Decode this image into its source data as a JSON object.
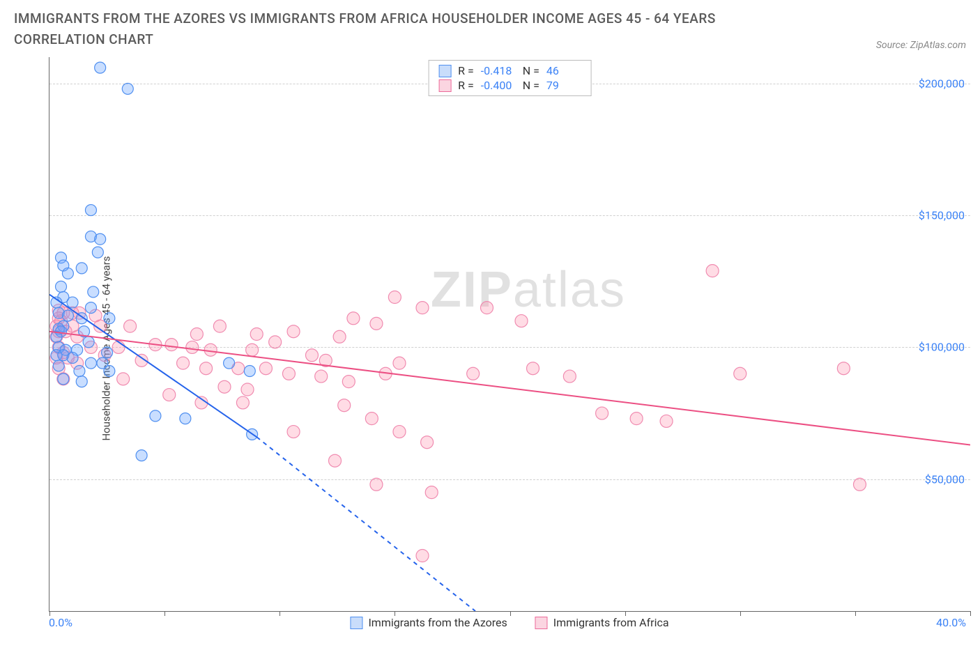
{
  "title": "IMMIGRANTS FROM THE AZORES VS IMMIGRANTS FROM AFRICA HOUSEHOLDER INCOME AGES 45 - 64 YEARS CORRELATION CHART",
  "source_label": "Source: ZipAtlas.com",
  "watermark_a": "ZIP",
  "watermark_b": "atlas",
  "chart": {
    "type": "scatter",
    "x_label_min": "0.0%",
    "x_label_max": "40.0%",
    "y_axis_label": "Householder Income Ages 45 - 64 years",
    "xlim": [
      0,
      40
    ],
    "ylim": [
      0,
      210000
    ],
    "y_ticks": [
      50000,
      100000,
      150000,
      200000
    ],
    "y_tick_labels": [
      "$50,000",
      "$100,000",
      "$150,000",
      "$200,000"
    ],
    "x_ticks": [
      0,
      5,
      10,
      15,
      20,
      25,
      30,
      35,
      40
    ],
    "grid_color": "#d0d0d0",
    "axis_color": "#666666",
    "background_color": "#ffffff",
    "tick_label_color": "#3b82f6",
    "y_tick_fontsize": 16,
    "series": [
      {
        "id": "azores",
        "legend_label": "Immigrants from the Azores",
        "R_label": "R =",
        "R_value": "-0.418",
        "N_label": "N =",
        "N_value": "46",
        "marker_fill": "rgba(99,160,255,0.35)",
        "marker_stroke": "#4f8ff0",
        "marker_radius": 8,
        "swatch_fill": "#c9ddfb",
        "swatch_border": "#4f8ff0",
        "trend_color": "#2563eb",
        "trend_width": 2,
        "trend_start": [
          0.0,
          120000
        ],
        "trend_solid_end": [
          9.0,
          66000
        ],
        "trend_dash_end": [
          18.5,
          0
        ],
        "points": [
          [
            2.2,
            206000
          ],
          [
            3.4,
            198000
          ],
          [
            1.8,
            152000
          ],
          [
            1.8,
            142000
          ],
          [
            2.2,
            141000
          ],
          [
            2.1,
            136000
          ],
          [
            0.5,
            134000
          ],
          [
            0.6,
            131000
          ],
          [
            1.4,
            130000
          ],
          [
            0.8,
            128000
          ],
          [
            0.5,
            123000
          ],
          [
            1.9,
            121000
          ],
          [
            0.6,
            119000
          ],
          [
            0.3,
            117000
          ],
          [
            1.0,
            117000
          ],
          [
            1.8,
            115000
          ],
          [
            0.4,
            113000
          ],
          [
            0.8,
            112000
          ],
          [
            1.4,
            111000
          ],
          [
            2.6,
            111000
          ],
          [
            0.6,
            108000
          ],
          [
            0.4,
            107000
          ],
          [
            0.5,
            106000
          ],
          [
            1.5,
            106000
          ],
          [
            0.3,
            104000
          ],
          [
            1.7,
            102000
          ],
          [
            0.4,
            100000
          ],
          [
            0.7,
            99000
          ],
          [
            1.2,
            99000
          ],
          [
            2.5,
            98000
          ],
          [
            0.3,
            97000
          ],
          [
            0.6,
            97000
          ],
          [
            1.0,
            96000
          ],
          [
            1.8,
            94000
          ],
          [
            2.3,
            94000
          ],
          [
            7.8,
            94000
          ],
          [
            0.4,
            93000
          ],
          [
            1.3,
            91000
          ],
          [
            2.6,
            91000
          ],
          [
            0.6,
            88000
          ],
          [
            1.4,
            87000
          ],
          [
            4.6,
            74000
          ],
          [
            5.9,
            73000
          ],
          [
            8.8,
            67000
          ],
          [
            8.7,
            91000
          ],
          [
            4.0,
            59000
          ]
        ]
      },
      {
        "id": "africa",
        "legend_label": "Immigrants from Africa",
        "R_label": "R =",
        "R_value": "-0.400",
        "N_label": "N =",
        "N_value": "79",
        "marker_fill": "rgba(255,140,170,0.30)",
        "marker_stroke": "#f08bb0",
        "marker_radius": 9,
        "swatch_fill": "#fbd5e1",
        "swatch_border": "#ec6a9a",
        "trend_color": "#ec4f83",
        "trend_width": 2,
        "trend_start": [
          0.0,
          106000
        ],
        "trend_solid_end": [
          40.0,
          63000
        ],
        "trend_dash_end": null,
        "points": [
          [
            28.8,
            129000
          ],
          [
            0.4,
            114000
          ],
          [
            0.6,
            113000
          ],
          [
            1.0,
            113000
          ],
          [
            1.3,
            113000
          ],
          [
            0.4,
            111000
          ],
          [
            15.0,
            119000
          ],
          [
            16.2,
            115000
          ],
          [
            0.5,
            110000
          ],
          [
            2.0,
            112000
          ],
          [
            0.3,
            108000
          ],
          [
            1.0,
            108000
          ],
          [
            13.2,
            111000
          ],
          [
            14.2,
            109000
          ],
          [
            0.4,
            106000
          ],
          [
            0.7,
            106000
          ],
          [
            2.2,
            108000
          ],
          [
            0.3,
            104000
          ],
          [
            1.2,
            104000
          ],
          [
            3.5,
            108000
          ],
          [
            6.4,
            105000
          ],
          [
            7.4,
            108000
          ],
          [
            9.0,
            105000
          ],
          [
            9.8,
            102000
          ],
          [
            10.6,
            106000
          ],
          [
            4.6,
            101000
          ],
          [
            5.3,
            101000
          ],
          [
            6.2,
            100000
          ],
          [
            0.4,
            100000
          ],
          [
            1.8,
            100000
          ],
          [
            3.0,
            100000
          ],
          [
            7.0,
            99000
          ],
          [
            8.8,
            99000
          ],
          [
            0.6,
            98000
          ],
          [
            11.4,
            97000
          ],
          [
            12.0,
            95000
          ],
          [
            12.6,
            104000
          ],
          [
            19.0,
            115000
          ],
          [
            20.5,
            110000
          ],
          [
            0.3,
            96000
          ],
          [
            2.4,
            97000
          ],
          [
            0.8,
            96000
          ],
          [
            4.0,
            95000
          ],
          [
            1.2,
            94000
          ],
          [
            5.8,
            94000
          ],
          [
            6.8,
            92000
          ],
          [
            8.2,
            92000
          ],
          [
            9.4,
            92000
          ],
          [
            10.4,
            90000
          ],
          [
            0.4,
            92000
          ],
          [
            15.2,
            94000
          ],
          [
            18.4,
            90000
          ],
          [
            21.0,
            92000
          ],
          [
            22.6,
            89000
          ],
          [
            3.2,
            88000
          ],
          [
            11.8,
            89000
          ],
          [
            13.0,
            87000
          ],
          [
            14.6,
            90000
          ],
          [
            0.6,
            88000
          ],
          [
            7.6,
            85000
          ],
          [
            8.6,
            84000
          ],
          [
            30.0,
            90000
          ],
          [
            34.5,
            92000
          ],
          [
            5.2,
            82000
          ],
          [
            6.6,
            79000
          ],
          [
            8.4,
            79000
          ],
          [
            24.0,
            75000
          ],
          [
            25.5,
            73000
          ],
          [
            26.8,
            72000
          ],
          [
            12.8,
            78000
          ],
          [
            14.0,
            73000
          ],
          [
            10.6,
            68000
          ],
          [
            15.2,
            68000
          ],
          [
            16.4,
            64000
          ],
          [
            12.4,
            57000
          ],
          [
            14.2,
            48000
          ],
          [
            35.2,
            48000
          ],
          [
            16.6,
            45000
          ],
          [
            16.2,
            21000
          ]
        ]
      }
    ]
  }
}
